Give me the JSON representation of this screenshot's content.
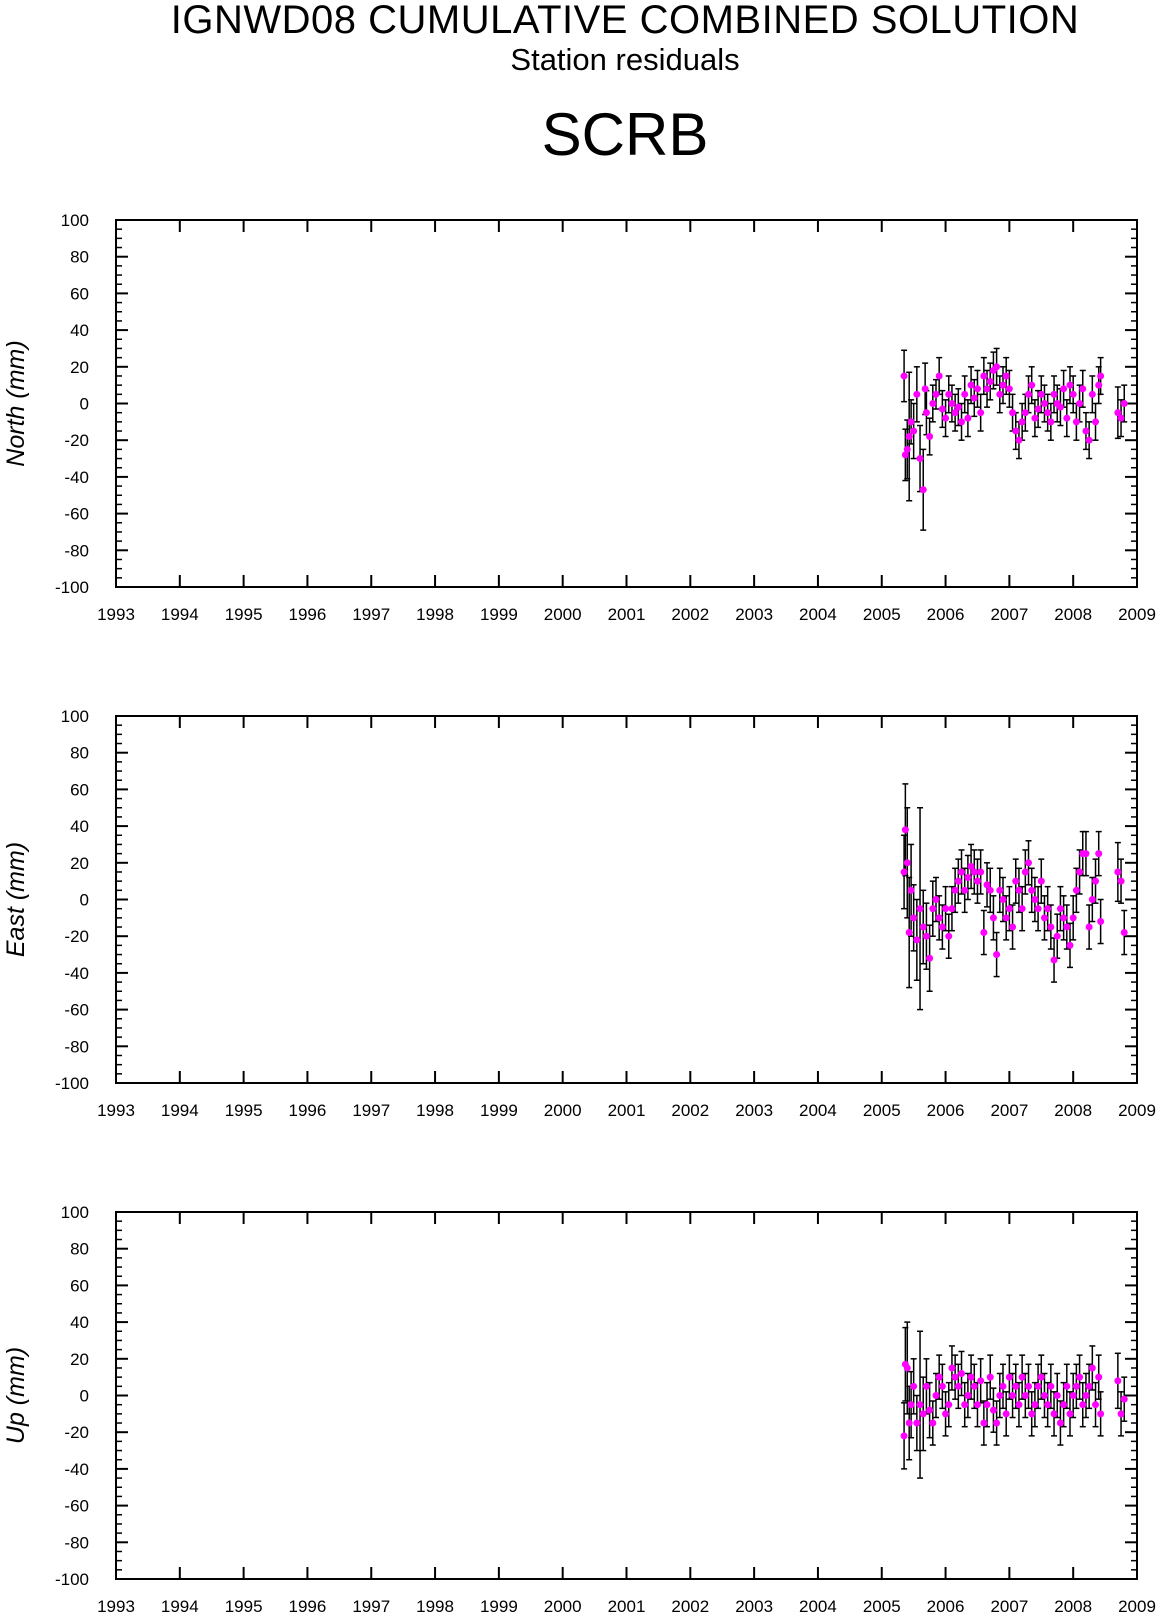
{
  "header": {
    "title": "IGNWD08 CUMULATIVE COMBINED SOLUTION",
    "subtitle": "Station residuals",
    "station": "SCRB"
  },
  "colors": {
    "point": "#ff00ff",
    "errorbar": "#000000",
    "axis": "#000000"
  },
  "chart_data": [
    {
      "type": "scatter",
      "ylabel": "North (mm)",
      "xlim": [
        1993,
        2009
      ],
      "ylim": [
        -100,
        100
      ],
      "x_ticks": [
        "1993",
        "1994",
        "1995",
        "1996",
        "1997",
        "1998",
        "1999",
        "2000",
        "2001",
        "2002",
        "2003",
        "2004",
        "2005",
        "2006",
        "2007",
        "2008",
        "2009"
      ],
      "y_ticks": [
        "100",
        "80",
        "60",
        "40",
        "20",
        "0",
        "-20",
        "-40",
        "-60",
        "-80",
        "-100"
      ],
      "error_bars": true,
      "series": [
        {
          "x": [
            2005.35,
            2005.37,
            2005.4,
            2005.43,
            2005.46,
            2005.5,
            2005.55,
            2005.6,
            2005.65,
            2005.68,
            2005.7,
            2005.75,
            2005.8,
            2005.85,
            2005.9,
            2005.95,
            2006.0,
            2006.05,
            2006.1,
            2006.15,
            2006.2,
            2006.25,
            2006.3,
            2006.35,
            2006.4,
            2006.45,
            2006.5,
            2006.55,
            2006.6,
            2006.65,
            2006.7,
            2006.75,
            2006.8,
            2006.85,
            2006.9,
            2006.95,
            2007.0,
            2007.05,
            2007.1,
            2007.15,
            2007.2,
            2007.25,
            2007.3,
            2007.35,
            2007.4,
            2007.45,
            2007.5,
            2007.55,
            2007.6,
            2007.65,
            2007.7,
            2007.75,
            2007.8,
            2007.85,
            2007.9,
            2007.95,
            2008.0,
            2008.05,
            2008.1,
            2008.15,
            2008.2,
            2008.25,
            2008.3,
            2008.35,
            2008.4,
            2008.43,
            2008.7,
            2008.75,
            2008.8
          ],
          "y": [
            15,
            -28,
            -25,
            -18,
            -10,
            -15,
            5,
            -30,
            -47,
            8,
            -5,
            -18,
            0,
            5,
            15,
            -3,
            -8,
            5,
            0,
            -5,
            -2,
            -10,
            5,
            -8,
            10,
            3,
            8,
            -5,
            15,
            8,
            12,
            18,
            20,
            5,
            10,
            15,
            8,
            -5,
            -15,
            -20,
            -10,
            -5,
            5,
            10,
            -8,
            -3,
            5,
            0,
            -5,
            -10,
            5,
            0,
            -2,
            8,
            -8,
            10,
            5,
            -10,
            0,
            8,
            -15,
            -20,
            5,
            -10,
            10,
            15,
            -5,
            -8,
            0
          ],
          "err": [
            14,
            14,
            16,
            35,
            12,
            15,
            15,
            18,
            22,
            14,
            12,
            10,
            10,
            8,
            10,
            10,
            10,
            10,
            10,
            10,
            10,
            10,
            10,
            10,
            10,
            10,
            10,
            10,
            10,
            10,
            10,
            10,
            10,
            10,
            10,
            10,
            10,
            10,
            10,
            10,
            10,
            10,
            10,
            10,
            10,
            10,
            10,
            10,
            10,
            10,
            10,
            10,
            10,
            10,
            10,
            10,
            10,
            10,
            10,
            10,
            10,
            10,
            10,
            10,
            10,
            10,
            14,
            10,
            10
          ]
        }
      ]
    },
    {
      "type": "scatter",
      "ylabel": "East (mm)",
      "xlim": [
        1993,
        2009
      ],
      "ylim": [
        -100,
        100
      ],
      "x_ticks": [
        "1993",
        "1994",
        "1995",
        "1996",
        "1997",
        "1998",
        "1999",
        "2000",
        "2001",
        "2002",
        "2003",
        "2004",
        "2005",
        "2006",
        "2007",
        "2008",
        "2009"
      ],
      "y_ticks": [
        "100",
        "80",
        "60",
        "40",
        "20",
        "0",
        "-20",
        "-40",
        "-60",
        "-80",
        "-100"
      ],
      "error_bars": true,
      "series": [
        {
          "x": [
            2005.35,
            2005.37,
            2005.4,
            2005.43,
            2005.46,
            2005.5,
            2005.55,
            2005.6,
            2005.65,
            2005.7,
            2005.75,
            2005.8,
            2005.85,
            2005.9,
            2005.95,
            2006.0,
            2006.05,
            2006.1,
            2006.15,
            2006.2,
            2006.25,
            2006.3,
            2006.35,
            2006.4,
            2006.45,
            2006.5,
            2006.55,
            2006.6,
            2006.65,
            2006.7,
            2006.75,
            2006.8,
            2006.85,
            2006.9,
            2006.95,
            2007.0,
            2007.05,
            2007.1,
            2007.15,
            2007.2,
            2007.25,
            2007.3,
            2007.35,
            2007.4,
            2007.45,
            2007.5,
            2007.55,
            2007.6,
            2007.65,
            2007.7,
            2007.75,
            2007.8,
            2007.85,
            2007.9,
            2007.95,
            2008.0,
            2008.05,
            2008.1,
            2008.15,
            2008.2,
            2008.25,
            2008.3,
            2008.35,
            2008.4,
            2008.43,
            2008.7,
            2008.75,
            2008.8
          ],
          "x_note": "",
          "y": [
            15,
            38,
            20,
            -18,
            5,
            -10,
            -22,
            -5,
            -15,
            -20,
            -32,
            -5,
            0,
            -10,
            -15,
            -5,
            -20,
            -5,
            5,
            10,
            15,
            5,
            12,
            18,
            15,
            10,
            15,
            -18,
            8,
            5,
            -10,
            -30,
            5,
            0,
            -10,
            -5,
            -15,
            10,
            5,
            -5,
            15,
            20,
            5,
            0,
            -5,
            10,
            -10,
            -5,
            -15,
            -33,
            -20,
            -5,
            -10,
            -15,
            -25,
            -10,
            5,
            15,
            25,
            25,
            -15,
            0,
            10,
            25,
            -12,
            15,
            10,
            -18
          ],
          "err": [
            20,
            25,
            30,
            30,
            25,
            18,
            22,
            55,
            20,
            18,
            18,
            15,
            12,
            12,
            12,
            12,
            12,
            12,
            12,
            12,
            12,
            12,
            12,
            12,
            12,
            12,
            12,
            12,
            12,
            12,
            12,
            12,
            12,
            12,
            12,
            12,
            12,
            12,
            12,
            12,
            12,
            12,
            12,
            12,
            12,
            12,
            12,
            12,
            12,
            12,
            12,
            12,
            12,
            12,
            12,
            12,
            12,
            12,
            12,
            12,
            12,
            12,
            12,
            12,
            12,
            16,
            12,
            12
          ]
        }
      ]
    },
    {
      "type": "scatter",
      "ylabel": "Up (mm)",
      "xlim": [
        1993,
        2009
      ],
      "ylim": [
        -100,
        100
      ],
      "x_ticks": [
        "1993",
        "1994",
        "1995",
        "1996",
        "1997",
        "1998",
        "1999",
        "2000",
        "2001",
        "2002",
        "2003",
        "2004",
        "2005",
        "2006",
        "2007",
        "2008",
        "2009"
      ],
      "y_ticks": [
        "100",
        "80",
        "60",
        "40",
        "20",
        "0",
        "-20",
        "-40",
        "-60",
        "-80",
        "-100"
      ],
      "error_bars": true,
      "series": [
        {
          "x": [
            2005.35,
            2005.37,
            2005.4,
            2005.43,
            2005.46,
            2005.5,
            2005.55,
            2005.6,
            2005.65,
            2005.7,
            2005.75,
            2005.8,
            2005.85,
            2005.9,
            2005.95,
            2006.0,
            2006.05,
            2006.1,
            2006.15,
            2006.2,
            2006.25,
            2006.3,
            2006.35,
            2006.4,
            2006.45,
            2006.5,
            2006.55,
            2006.6,
            2006.65,
            2006.7,
            2006.75,
            2006.8,
            2006.85,
            2006.9,
            2006.95,
            2007.0,
            2007.05,
            2007.1,
            2007.15,
            2007.2,
            2007.25,
            2007.3,
            2007.35,
            2007.4,
            2007.45,
            2007.5,
            2007.55,
            2007.6,
            2007.65,
            2007.7,
            2007.75,
            2007.8,
            2007.85,
            2007.9,
            2007.95,
            2008.0,
            2008.05,
            2008.1,
            2008.15,
            2008.2,
            2008.25,
            2008.3,
            2008.35,
            2008.4,
            2008.43,
            2008.7,
            2008.75,
            2008.8
          ],
          "y": [
            -22,
            17,
            15,
            -15,
            -5,
            5,
            -15,
            -5,
            -10,
            5,
            -8,
            -15,
            0,
            10,
            5,
            -10,
            -5,
            15,
            10,
            5,
            12,
            -5,
            0,
            10,
            5,
            -5,
            8,
            -15,
            -5,
            10,
            -8,
            -15,
            0,
            5,
            -10,
            10,
            0,
            5,
            -5,
            10,
            0,
            5,
            -10,
            -5,
            5,
            10,
            0,
            -5,
            5,
            -10,
            0,
            -15,
            -5,
            5,
            -10,
            0,
            5,
            10,
            -5,
            0,
            5,
            15,
            -5,
            10,
            -10,
            8,
            -10,
            -2
          ],
          "err": [
            18,
            20,
            25,
            20,
            18,
            15,
            15,
            40,
            20,
            15,
            15,
            12,
            12,
            12,
            12,
            12,
            12,
            12,
            12,
            12,
            12,
            12,
            12,
            12,
            12,
            12,
            12,
            12,
            12,
            12,
            12,
            12,
            12,
            12,
            12,
            12,
            12,
            12,
            12,
            12,
            12,
            12,
            12,
            12,
            12,
            12,
            12,
            12,
            12,
            12,
            12,
            12,
            12,
            12,
            12,
            12,
            12,
            12,
            12,
            12,
            12,
            12,
            12,
            12,
            12,
            15,
            12,
            12
          ]
        }
      ]
    }
  ]
}
